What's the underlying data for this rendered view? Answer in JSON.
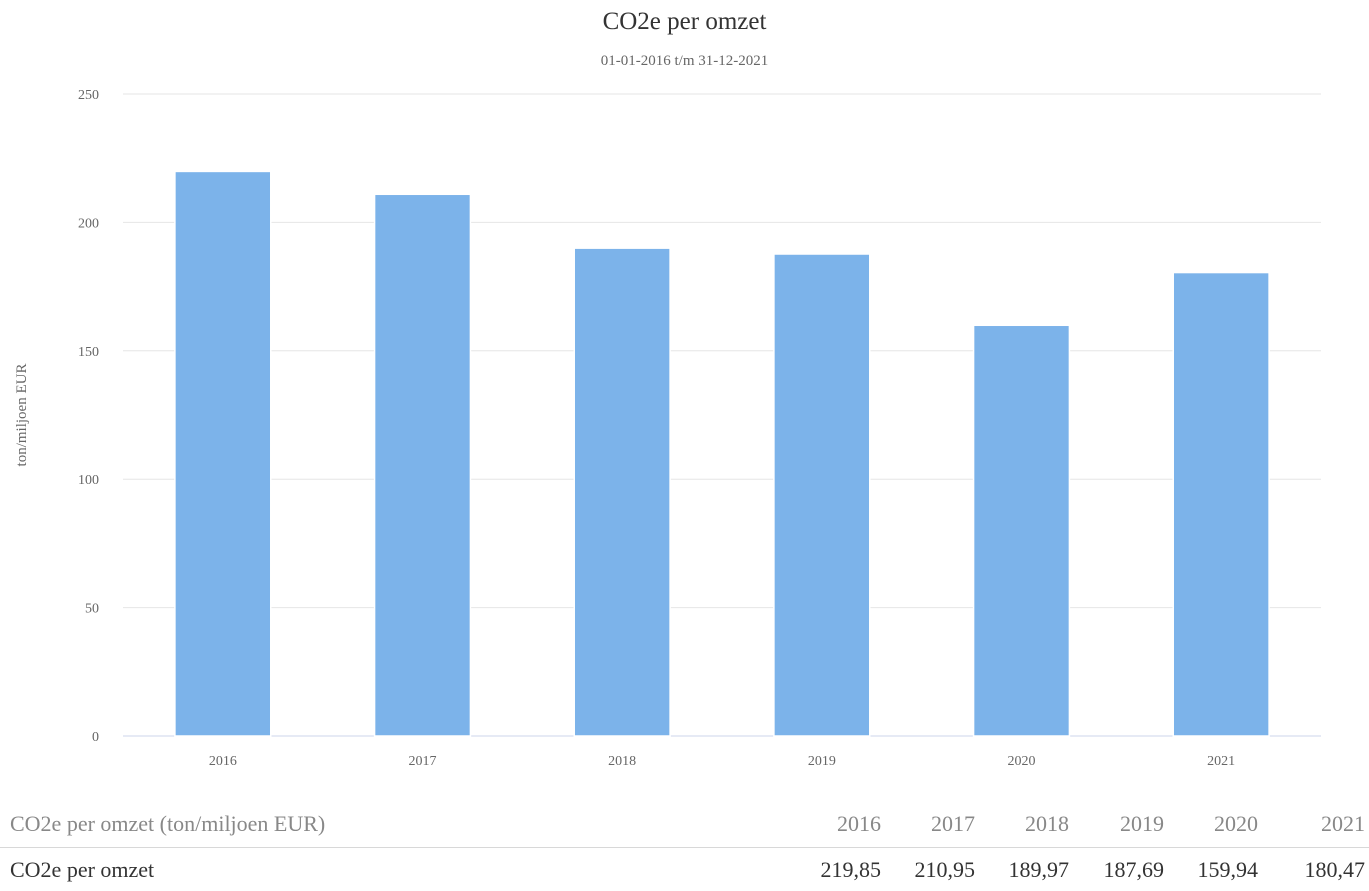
{
  "chart_data": {
    "type": "bar",
    "title": "CO2e per omzet",
    "subtitle": "01-01-2016 t/m 31-12-2021",
    "xlabel": "",
    "ylabel": "ton/miljoen EUR",
    "categories": [
      "2016",
      "2017",
      "2018",
      "2019",
      "2020",
      "2021"
    ],
    "series": [
      {
        "name": "CO2e per omzet",
        "values": [
          219.85,
          210.95,
          189.97,
          187.69,
          159.94,
          180.47
        ]
      }
    ],
    "ylim": [
      0,
      250
    ],
    "yticks": [
      "0",
      "50",
      "100",
      "150",
      "200",
      "250"
    ],
    "grid": true,
    "legend": "none",
    "bar_color": "#7cb3ea",
    "grid_color": "#e6e6e6",
    "baseline_color": "#ccd6eb"
  },
  "data_table": {
    "header": {
      "label": "CO2e per omzet (ton/miljoen EUR)",
      "cells": [
        "2016",
        "2017",
        "2018",
        "2019",
        "2020",
        "2021"
      ]
    },
    "rows": [
      {
        "label": "CO2e per omzet",
        "cells": [
          "219,85",
          "210,95",
          "189,97",
          "187,69",
          "159,94",
          "180,47"
        ]
      }
    ]
  }
}
